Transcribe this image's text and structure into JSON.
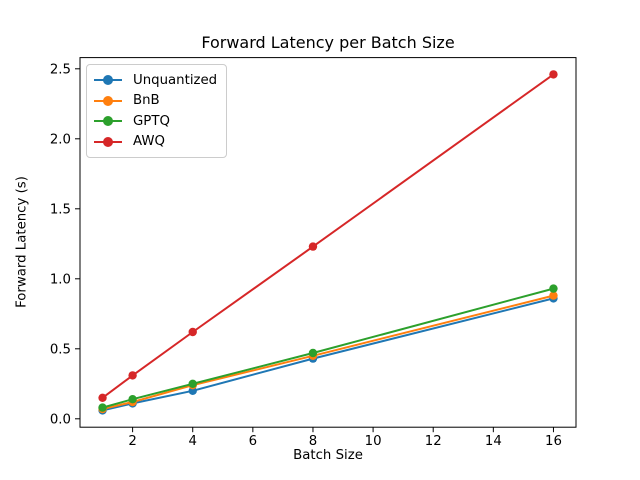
{
  "window": {
    "background_color": "#ffffff"
  },
  "chart_data": {
    "type": "line",
    "title": "Forward Latency per Batch Size",
    "xlabel": "Batch Size",
    "ylabel": "Forward Latency (s)",
    "x": [
      1,
      2,
      4,
      8,
      16
    ],
    "series": [
      {
        "name": "Unquantized",
        "color": "#1f77b4",
        "values": [
          0.06,
          0.11,
          0.2,
          0.43,
          0.86
        ]
      },
      {
        "name": "BnB",
        "color": "#ff7f0e",
        "values": [
          0.07,
          0.12,
          0.24,
          0.45,
          0.88
        ]
      },
      {
        "name": "GPTQ",
        "color": "#2ca02c",
        "values": [
          0.08,
          0.14,
          0.25,
          0.47,
          0.93
        ]
      },
      {
        "name": "AWQ",
        "color": "#d62728",
        "values": [
          0.15,
          0.31,
          0.62,
          1.23,
          2.46
        ]
      }
    ],
    "xticks": [
      2,
      4,
      6,
      8,
      10,
      12,
      14,
      16
    ],
    "xtick_labels": [
      "2",
      "4",
      "6",
      "8",
      "10",
      "12",
      "14",
      "16"
    ],
    "yticks": [
      0.0,
      0.5,
      1.0,
      1.5,
      2.0,
      2.5
    ],
    "ytick_labels": [
      "0.0",
      "0.5",
      "1.0",
      "1.5",
      "2.0",
      "2.5"
    ],
    "xlim": [
      0.25,
      16.75
    ],
    "ylim": [
      -0.06,
      2.58
    ],
    "grid": false,
    "legend_position": "upper-left",
    "marker": "circle",
    "axis_color": "#000000",
    "text_color": "#000000"
  }
}
